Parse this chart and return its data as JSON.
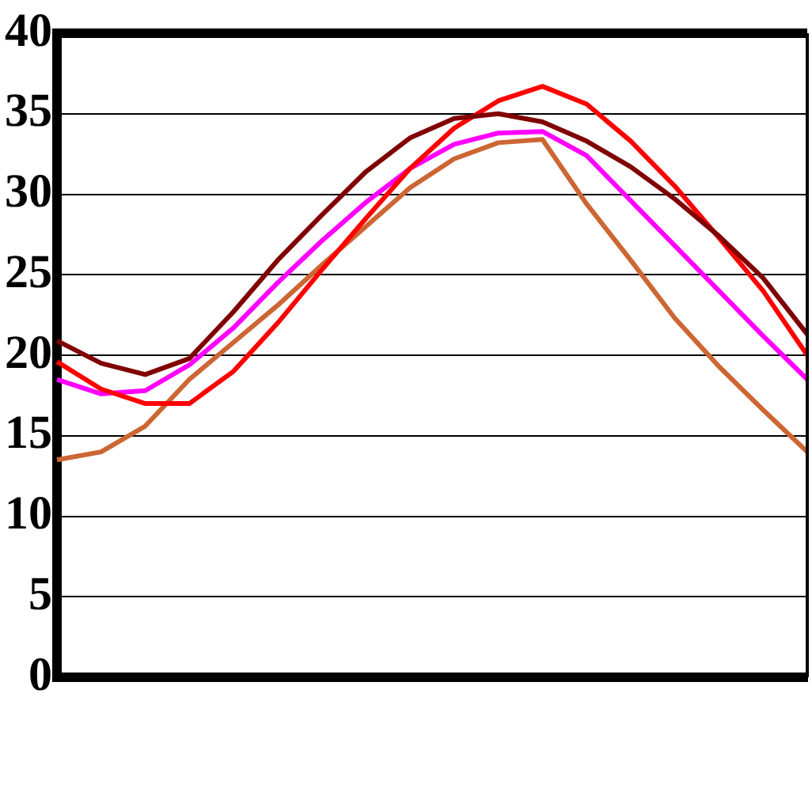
{
  "chart_data": {
    "type": "line",
    "categories": [
      null,
      null,
      null,
      null,
      null,
      null,
      null,
      null,
      null,
      null,
      null,
      null,
      null,
      null,
      null,
      null,
      null,
      null
    ],
    "ylim": [
      0,
      40
    ],
    "yticks": [
      0,
      5,
      10,
      15,
      20,
      25,
      30,
      35,
      40
    ],
    "grid": "y",
    "marker": "none",
    "line_style": "solid",
    "series": [
      {
        "color": "#800000",
        "values": [
          20.9,
          19.5,
          18.8,
          19.8,
          22.7,
          25.9,
          28.7,
          31.4,
          33.5,
          34.7,
          35.0,
          34.5,
          33.3,
          31.7,
          29.7,
          27.4,
          24.8,
          21.3
        ]
      },
      {
        "color": "#ff0000",
        "values": [
          19.6,
          17.9,
          17.0,
          17.0,
          19.0,
          22.0,
          25.3,
          28.5,
          31.6,
          34.1,
          35.8,
          36.7,
          35.6,
          33.3,
          30.5,
          27.3,
          24.0,
          20.0
        ]
      },
      {
        "color": "#ff00ff",
        "values": [
          18.5,
          17.6,
          17.8,
          19.4,
          21.7,
          24.5,
          27.1,
          29.5,
          31.6,
          33.1,
          33.8,
          33.9,
          32.4,
          29.6,
          26.8,
          24.0,
          21.2,
          18.5
        ]
      },
      {
        "color": "#cc6633",
        "values": [
          13.5,
          14.0,
          15.6,
          18.5,
          20.8,
          23.1,
          25.6,
          28.0,
          30.4,
          32.2,
          33.2,
          33.4,
          29.4,
          25.9,
          22.3,
          19.3,
          16.6,
          14.0
        ]
      }
    ]
  }
}
